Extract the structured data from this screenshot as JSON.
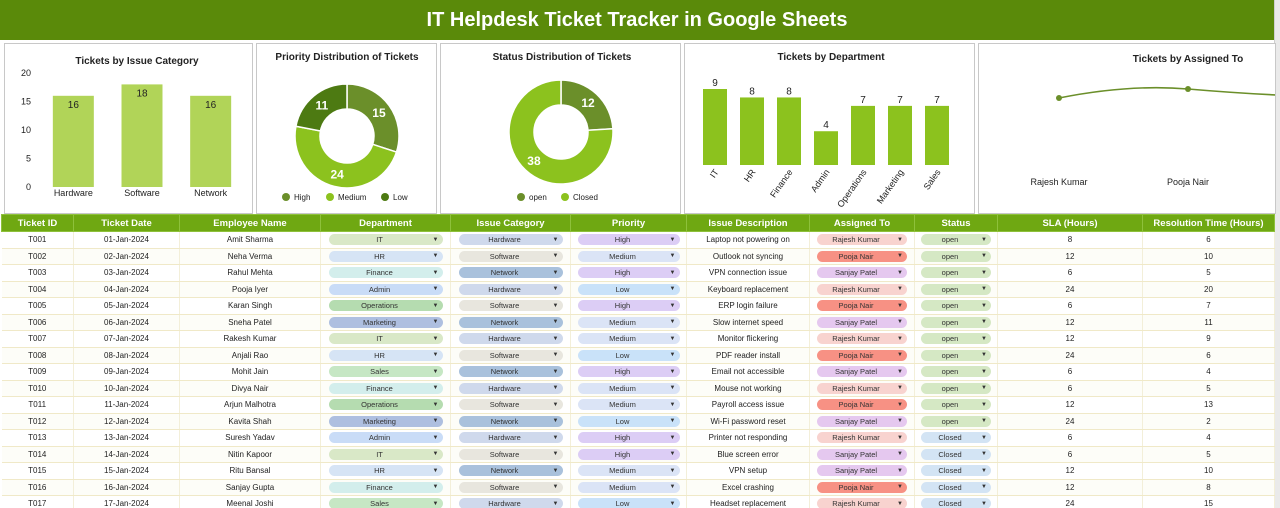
{
  "title": "IT Helpdesk Ticket Tracker in Google Sheets",
  "charts": {
    "issue_category": {
      "title": "Tickets by Issue Category",
      "y_ticks": [
        "20",
        "15",
        "10",
        "5",
        "0"
      ]
    },
    "priority": {
      "title": "Priority Distribution of Tickets"
    },
    "status": {
      "title": "Status Distribution of Tickets"
    },
    "department": {
      "title": "Tickets by Department"
    },
    "assigned": {
      "title": "Tickets by Assigned To"
    }
  },
  "chart_data": [
    {
      "type": "bar",
      "title": "Tickets by Issue Category",
      "categories": [
        "Hardware",
        "Software",
        "Network"
      ],
      "values": [
        16,
        18,
        16
      ],
      "ylim": [
        0,
        20
      ],
      "color": "#b1d458"
    },
    {
      "type": "pie",
      "title": "Priority Distribution of Tickets",
      "donut": true,
      "labels": [
        "High",
        "Medium",
        "Low"
      ],
      "values": [
        15,
        24,
        11
      ],
      "colors": [
        "#6b8f2a",
        "#8cc21e",
        "#4d7a12"
      ]
    },
    {
      "type": "pie",
      "title": "Status Distribution of Tickets",
      "donut": true,
      "labels": [
        "open",
        "Closed"
      ],
      "values": [
        12,
        38
      ],
      "colors": [
        "#6b8f2a",
        "#8cc21e"
      ]
    },
    {
      "type": "bar",
      "title": "Tickets by Department",
      "categories": [
        "IT",
        "HR",
        "Finance",
        "Admin",
        "Operations",
        "Marketing",
        "Sales"
      ],
      "values": [
        9,
        8,
        8,
        4,
        7,
        7,
        7
      ],
      "color": "#8cc21e"
    },
    {
      "type": "line",
      "title": "Tickets by Assigned To",
      "categories": [
        "Rajesh Kumar",
        "Pooja Nair"
      ],
      "color": "#6b8f2a"
    }
  ],
  "table": {
    "headers": [
      "Ticket ID",
      "Ticket Date",
      "Employee Name",
      "Department",
      "Issue Category",
      "Priority",
      "Issue Description",
      "Assigned To",
      "Status",
      "SLA (Hours)",
      "Resolution Time (Hours)"
    ],
    "rows": [
      [
        "T001",
        "01-Jan-2024",
        "Amit Sharma",
        "IT",
        "Hardware",
        "High",
        "Laptop not powering on",
        "Rajesh Kumar",
        "open",
        "8",
        "6"
      ],
      [
        "T002",
        "02-Jan-2024",
        "Neha Verma",
        "HR",
        "Software",
        "Medium",
        "Outlook not syncing",
        "Pooja Nair",
        "open",
        "12",
        "10"
      ],
      [
        "T003",
        "03-Jan-2024",
        "Rahul Mehta",
        "Finance",
        "Network",
        "High",
        "VPN connection issue",
        "Sanjay Patel",
        "open",
        "6",
        "5"
      ],
      [
        "T004",
        "04-Jan-2024",
        "Pooja Iyer",
        "Admin",
        "Hardware",
        "Low",
        "Keyboard replacement",
        "Rajesh Kumar",
        "open",
        "24",
        "20"
      ],
      [
        "T005",
        "05-Jan-2024",
        "Karan Singh",
        "Operations",
        "Software",
        "High",
        "ERP login failure",
        "Pooja Nair",
        "open",
        "6",
        "7"
      ],
      [
        "T006",
        "06-Jan-2024",
        "Sneha Patel",
        "Marketing",
        "Network",
        "Medium",
        "Slow internet speed",
        "Sanjay Patel",
        "open",
        "12",
        "11"
      ],
      [
        "T007",
        "07-Jan-2024",
        "Rakesh Kumar",
        "IT",
        "Hardware",
        "Medium",
        "Monitor flickering",
        "Rajesh Kumar",
        "open",
        "12",
        "9"
      ],
      [
        "T008",
        "08-Jan-2024",
        "Anjali Rao",
        "HR",
        "Software",
        "Low",
        "PDF reader install",
        "Pooja Nair",
        "open",
        "24",
        "6"
      ],
      [
        "T009",
        "09-Jan-2024",
        "Mohit Jain",
        "Sales",
        "Network",
        "High",
        "Email not accessible",
        "Sanjay Patel",
        "open",
        "6",
        "4"
      ],
      [
        "T010",
        "10-Jan-2024",
        "Divya Nair",
        "Finance",
        "Hardware",
        "Medium",
        "Mouse not working",
        "Rajesh Kumar",
        "open",
        "6",
        "5"
      ],
      [
        "T011",
        "11-Jan-2024",
        "Arjun Malhotra",
        "Operations",
        "Software",
        "Medium",
        "Payroll access issue",
        "Pooja Nair",
        "open",
        "12",
        "13"
      ],
      [
        "T012",
        "12-Jan-2024",
        "Kavita Shah",
        "Marketing",
        "Network",
        "Low",
        "Wi-Fi password reset",
        "Sanjay Patel",
        "open",
        "24",
        "2"
      ],
      [
        "T013",
        "13-Jan-2024",
        "Suresh Yadav",
        "Admin",
        "Hardware",
        "High",
        "Printer not responding",
        "Rajesh Kumar",
        "Closed",
        "6",
        "4"
      ],
      [
        "T014",
        "14-Jan-2024",
        "Nitin Kapoor",
        "IT",
        "Software",
        "High",
        "Blue screen error",
        "Sanjay Patel",
        "Closed",
        "6",
        "5"
      ],
      [
        "T015",
        "15-Jan-2024",
        "Ritu Bansal",
        "HR",
        "Network",
        "Medium",
        "VPN setup",
        "Sanjay Patel",
        "Closed",
        "12",
        "10"
      ],
      [
        "T016",
        "16-Jan-2024",
        "Sanjay Gupta",
        "Finance",
        "Software",
        "Medium",
        "Excel crashing",
        "Pooja Nair",
        "Closed",
        "12",
        "8"
      ],
      [
        "T017",
        "17-Jan-2024",
        "Meenal Joshi",
        "Sales",
        "Hardware",
        "Low",
        "Headset replacement",
        "Rajesh Kumar",
        "Closed",
        "24",
        "15"
      ]
    ]
  },
  "chip_colors": {
    "Department": {
      "IT": "#d9e8c7",
      "HR": "#d6e4f5",
      "Finance": "#d3eeec",
      "Admin": "#c9dcf7",
      "Operations": "#b5dcb0",
      "Marketing": "#aebfe0",
      "Sales": "#c6e7c4"
    },
    "Issue Category": {
      "Hardware": "#cfd9ec",
      "Software": "#e8e6de",
      "Network": "#a9c1dc"
    },
    "Priority": {
      "High": "#dccdf5",
      "Medium": "#dbe4f6",
      "Low": "#c9e2f9"
    },
    "Assigned To": {
      "Rajesh Kumar": "#f8d3cf",
      "Pooja Nair": "#f79184",
      "Sanjay Patel": "#e5c8ef"
    },
    "Status": {
      "open": "#d5e8c4",
      "Closed": "#d3e4f4"
    }
  }
}
